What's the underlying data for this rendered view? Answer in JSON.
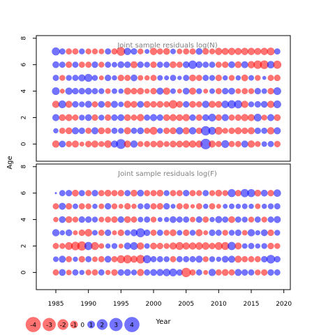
{
  "chart_data": [
    {
      "type": "scatter",
      "subtype": "bubble",
      "title": "Joint sample residuals log(N)",
      "ylabel": "Age",
      "xlim": [
        1982,
        2021
      ],
      "ylim": [
        -1.3,
        8.2
      ],
      "xticks": [
        1985,
        1990,
        1995,
        2000,
        2005,
        2010,
        2015,
        2020
      ],
      "yticks": [
        0,
        2,
        4,
        6,
        8
      ],
      "grid": false,
      "years": [
        1985,
        1986,
        1987,
        1988,
        1989,
        1990,
        1991,
        1992,
        1993,
        1994,
        1995,
        1996,
        1997,
        1998,
        1999,
        2000,
        2001,
        2002,
        2003,
        2004,
        2005,
        2006,
        2007,
        2008,
        2009,
        2010,
        2011,
        2012,
        2013,
        2014,
        2015,
        2016,
        2017,
        2018,
        2019
      ],
      "ages": [
        0,
        1,
        2,
        3,
        4,
        5,
        6,
        7
      ],
      "residuals": [
        [
          -1.4,
          1.2,
          -1.0,
          -1.3,
          -0.6,
          -1.1,
          -1.3,
          -0.9,
          -1.5,
          1.3,
          2.6,
          -1.3,
          1.4,
          -0.9,
          -1.0,
          -1.1,
          -1.3,
          -0.9,
          -1.2,
          -1.2,
          -1.4,
          -1.4,
          -1.3,
          3.0,
          -1.3,
          -1.0,
          1.6,
          -1.0,
          -1.0,
          1.3,
          -1.4,
          -0.9,
          0.8,
          1.0,
          -1.1
        ],
        [
          0.7,
          -1.0,
          -1.2,
          1.3,
          1.1,
          -1.0,
          1.3,
          -1.2,
          -1.0,
          1.0,
          0.9,
          -1.3,
          1.0,
          1.2,
          -1.0,
          -1.6,
          0.9,
          -1.1,
          -1.2,
          1.4,
          -1.3,
          1.4,
          -1.1,
          2.4,
          1.6,
          -1.6,
          -0.9,
          -1.1,
          -1.3,
          -1.1,
          -1.3,
          1.1,
          1.0,
          -1.4,
          1.3
        ],
        [
          1.3,
          -1.2,
          -1.3,
          -1.0,
          0.9,
          1.2,
          -1.1,
          0.9,
          -1.1,
          1.1,
          1.2,
          -1.2,
          -1.0,
          -1.4,
          1.0,
          1.3,
          1.1,
          -1.2,
          -1.3,
          -1.2,
          -1.4,
          1.1,
          -1.1,
          1.2,
          1.6,
          -1.1,
          1.3,
          -1.0,
          -1.1,
          -1.4,
          -1.3,
          1.6,
          -0.9,
          1.3,
          -1.2
        ],
        [
          -1.4,
          1.6,
          -1.3,
          1.1,
          0.9,
          1.3,
          -1.0,
          1.2,
          -1.1,
          1.3,
          0.8,
          -1.4,
          -1.2,
          1.2,
          -1.2,
          -1.1,
          -1.2,
          -1.0,
          -1.9,
          -1.2,
          1.1,
          -1.2,
          -1.0,
          1.4,
          -1.3,
          -1.2,
          1.5,
          1.8,
          1.8,
          -1.4,
          0.9,
          1.1,
          1.2,
          -1.4,
          1.6
        ],
        [
          1.6,
          -0.6,
          1.4,
          1.1,
          1.1,
          1.2,
          1.0,
          0.9,
          -0.8,
          0.8,
          0.7,
          -1.3,
          -1.1,
          -1.2,
          -0.7,
          -1.1,
          1.3,
          -1.4,
          0.8,
          -0.6,
          1.2,
          -1.3,
          0.9,
          -0.6,
          0.8,
          -1.0,
          1.1,
          1.2,
          -0.8,
          -1.0,
          -0.9,
          1.1,
          0.8,
          -1.1,
          1.6
        ],
        [
          1.0,
          -0.9,
          0.9,
          1.0,
          1.3,
          1.7,
          0.9,
          -0.6,
          1.1,
          0.7,
          -1.1,
          -1.0,
          1.2,
          -0.8,
          -0.7,
          -1.0,
          0.8,
          0.6,
          1.0,
          0.5,
          1.0,
          -1.2,
          -1.0,
          1.0,
          0.9,
          -1.1,
          0.7,
          -0.9,
          0.7,
          -1.2,
          0.8,
          -0.9,
          0.4,
          -1.0,
          -1.1
        ],
        [
          1.2,
          1.0,
          -1.1,
          1.0,
          -1.0,
          -1.0,
          1.1,
          -0.9,
          1.0,
          0.8,
          1.2,
          1.1,
          -1.3,
          1.1,
          0.9,
          -1.1,
          1.0,
          1.0,
          -1.2,
          -1.0,
          1.2,
          1.9,
          1.2,
          1.0,
          1.0,
          -1.0,
          -1.1,
          1.2,
          -1.2,
          1.3,
          -1.4,
          -1.9,
          -2.0,
          1.5,
          -1.8
        ],
        [
          1.7,
          1.0,
          -1.0,
          -1.0,
          0.9,
          -0.9,
          -0.9,
          -0.8,
          1.0,
          -1.0,
          -2.0,
          1.4,
          1.1,
          -0.9,
          0.6,
          -1.4,
          -1.0,
          -1.2,
          0.8,
          -0.8,
          -1.0,
          -1.0,
          1.2,
          -1.1,
          -0.9,
          -1.4,
          -1.3,
          -1.4,
          -1.3,
          -1.4,
          -1.4,
          -1.3,
          -1.4,
          -1.6,
          1.0
        ]
      ]
    },
    {
      "type": "scatter",
      "subtype": "bubble",
      "title": "Joint sample residuals log(F)",
      "ylabel": "Age",
      "xlabel": "Year",
      "xlim": [
        1982,
        2021
      ],
      "ylim": [
        -1.3,
        8.2
      ],
      "xticks": [
        1985,
        1990,
        1995,
        2000,
        2005,
        2010,
        2015,
        2020
      ],
      "yticks": [
        0,
        2,
        4,
        6,
        8
      ],
      "grid": false,
      "years": [
        1985,
        1986,
        1987,
        1988,
        1989,
        1990,
        1991,
        1992,
        1993,
        1994,
        1995,
        1996,
        1997,
        1998,
        1999,
        2000,
        2001,
        2002,
        2003,
        2004,
        2005,
        2006,
        2007,
        2008,
        2009,
        2010,
        2011,
        2012,
        2013,
        2014,
        2015,
        2016,
        2017,
        2018,
        2019
      ],
      "ages": [
        0,
        1,
        2,
        3,
        4,
        5,
        6
      ],
      "residuals": [
        [
          -1.0,
          1.2,
          -0.8,
          1.0,
          0.7,
          -0.9,
          -1.0,
          1.0,
          -0.7,
          -1.1,
          1.1,
          1.2,
          0.9,
          -1.3,
          1.0,
          1.2,
          1.3,
          1.5,
          1.6,
          1.1,
          -2.4,
          -1.0,
          1.0,
          -0.6,
          1.4,
          -1.0,
          -1.2,
          -1.0,
          1.3,
          1.1,
          1.0,
          -0.9,
          -1.1,
          1.1,
          1.0
        ],
        [
          0.8,
          1.3,
          -1.0,
          0.7,
          -1.1,
          1.0,
          -0.8,
          -1.0,
          1.2,
          -1.0,
          -1.7,
          -1.9,
          -1.3,
          -2.0,
          1.8,
          1.0,
          1.0,
          0.9,
          -1.0,
          1.0,
          1.0,
          1.0,
          1.3,
          -0.9,
          0.9,
          0.7,
          1.2,
          1.3,
          -1.3,
          -1.0,
          -1.0,
          -1.0,
          1.1,
          2.0,
          1.1
        ],
        [
          -1.0,
          -0.9,
          -1.6,
          -2.0,
          -2.3,
          1.8,
          -1.7,
          -0.8,
          0.7,
          0.9,
          -0.6,
          1.3,
          1.6,
          -1.4,
          0.8,
          -1.2,
          -1.1,
          -0.9,
          -1.4,
          -1.7,
          -1.4,
          -1.4,
          -1.5,
          -1.5,
          -1.1,
          -1.6,
          -1.7,
          1.8,
          -1.3,
          0.8,
          1.0,
          0.7,
          0.9,
          -1.1,
          -0.9
        ],
        [
          1.4,
          0.7,
          1.2,
          -0.6,
          -1.1,
          -1.5,
          0.8,
          -1.0,
          1.1,
          -0.6,
          -1.1,
          0.9,
          1.3,
          2.2,
          1.1,
          -1.0,
          1.0,
          -0.9,
          -1.2,
          0.8,
          -1.1,
          0.9,
          -1.3,
          -0.6,
          1.1,
          1.0,
          -0.9,
          0.9,
          1.1,
          -0.8,
          1.4,
          0.7,
          1.2,
          -1.1,
          0.9
        ],
        [
          -0.7,
          1.2,
          -1.2,
          -0.9,
          1.1,
          1.1,
          0.9,
          -0.8,
          -1.0,
          -1.1,
          1.1,
          -1.2,
          -1.0,
          0.8,
          1.0,
          -0.9,
          0.6,
          0.7,
          1.2,
          1.0,
          1.0,
          -0.8,
          1.1,
          -1.0,
          0.7,
          1.3,
          1.0,
          -1.2,
          1.0,
          0.9,
          -0.9,
          1.0,
          -0.9,
          1.0,
          1.3
        ],
        [
          -1.0,
          1.3,
          -1.1,
          0.8,
          -1.0,
          -0.9,
          0.7,
          -0.8,
          1.1,
          -0.9,
          -0.6,
          -1.1,
          -0.7,
          0.9,
          1.0,
          -1.0,
          -1.1,
          1.1,
          0.6,
          -1.0,
          -0.9,
          -0.5,
          -1.0,
          0.7,
          -1.0,
          -0.6,
          0.6,
          0.8,
          0.7,
          0.8,
          0.7,
          -0.8,
          0.7,
          0.9,
          1.0
        ],
        [
          0.1,
          1.0,
          1.1,
          -1.2,
          1.0,
          -1.0,
          1.1,
          -1.0,
          -1.2,
          -1.0,
          -1.1,
          1.0,
          -1.2,
          1.2,
          -1.0,
          -1.0,
          -1.2,
          0.9,
          -1.0,
          -1.0,
          1.1,
          -1.0,
          -0.9,
          1.0,
          -0.9,
          -1.2,
          -0.9,
          1.7,
          -1.1,
          1.8,
          1.7,
          -1.2,
          1.2,
          -1.1,
          1.5
        ]
      ]
    }
  ],
  "legend": {
    "xlabel": "Year",
    "items": [
      "-4",
      "-3",
      "-2",
      "-1",
      "0",
      "1",
      "2",
      "3",
      "4"
    ],
    "values": [
      -4,
      -3,
      -2,
      -1,
      0,
      1,
      2,
      3,
      4
    ]
  },
  "colors": {
    "negative": "#ff0000",
    "positive": "#0000ff",
    "bubble_opacity": 0.55,
    "title_text": "#808080",
    "axis": "#000000"
  }
}
